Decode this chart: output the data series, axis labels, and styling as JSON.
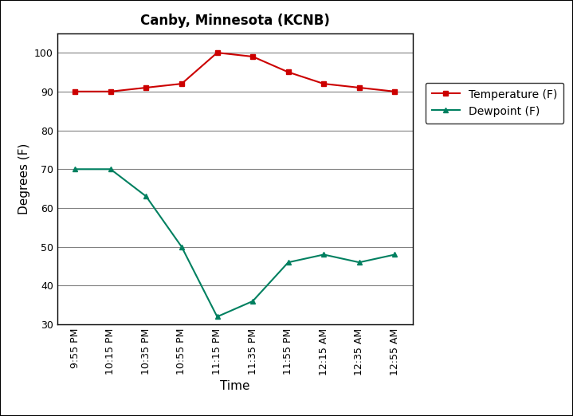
{
  "title": "Canby, Minnesota (KCNB)",
  "xlabel": "Time",
  "ylabel": "Degrees (F)",
  "x_labels": [
    "9:55 PM",
    "10:15 PM",
    "10:35 PM",
    "10:55 PM",
    "11:15 PM",
    "11:35 PM",
    "11:55 PM",
    "12:15 AM",
    "12:35 AM",
    "12:55 AM"
  ],
  "temperature": [
    90,
    90,
    91,
    92,
    100,
    99,
    95,
    92,
    91,
    90
  ],
  "dewpoint": [
    70,
    70,
    63,
    50,
    32,
    36,
    46,
    48,
    46,
    48
  ],
  "temp_color": "#CC0000",
  "dew_color": "#008060",
  "ylim": [
    30,
    105
  ],
  "yticks": [
    30,
    40,
    50,
    60,
    70,
    80,
    90,
    100
  ],
  "temp_label": "Temperature (F)",
  "dew_label": "Dewpoint (F)",
  "bg_color": "#ffffff",
  "plot_bg_color": "#ffffff",
  "title_fontsize": 12,
  "axis_label_fontsize": 11,
  "tick_fontsize": 9,
  "legend_fontsize": 10,
  "grid_color": "#808080",
  "marker_temp": "s",
  "marker_dew": "^",
  "fig_border_color": "#000000"
}
